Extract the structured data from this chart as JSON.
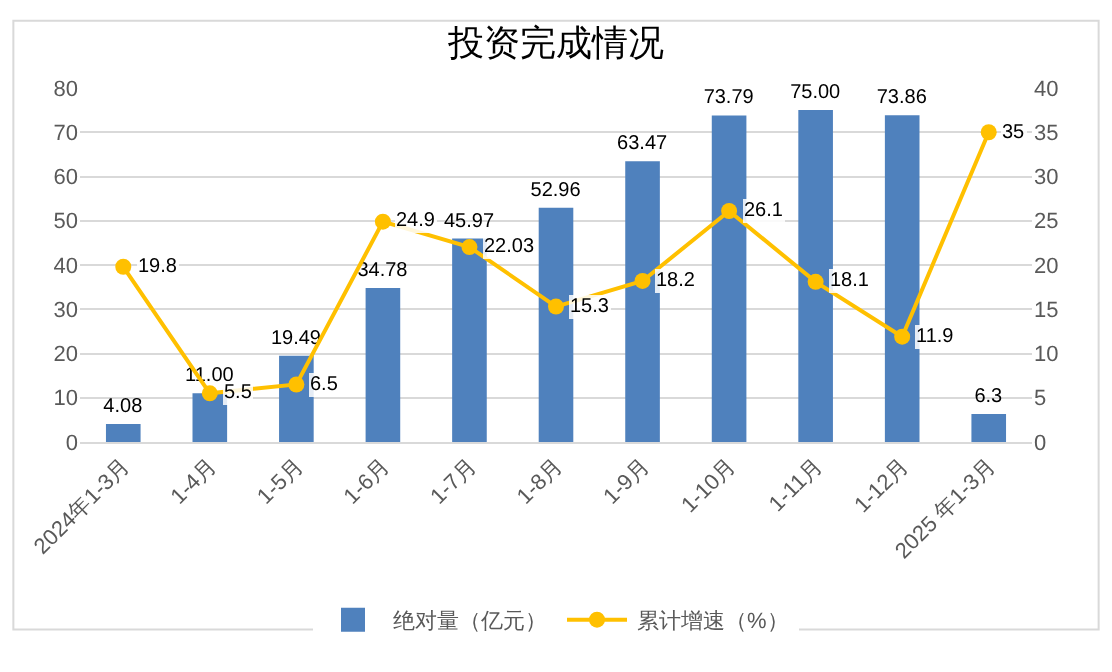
{
  "chart_data": {
    "type": "bar",
    "title": "投资完成情况",
    "categories": [
      "2024年1-3月",
      "1-4月",
      "1-5月",
      "1-6月",
      "1-7月",
      "1-8月",
      "1-9月",
      "1-10月",
      "1-11月",
      "1-12月",
      "2025 年1-3月"
    ],
    "series": [
      {
        "name": "绝对量（亿元）",
        "color": "#4f81bd",
        "values": [
          4.08,
          11.0,
          19.49,
          34.78,
          45.97,
          52.96,
          63.47,
          73.79,
          75.0,
          73.86,
          6.3
        ],
        "value_labels": [
          "4.08",
          "11.00",
          "19.49",
          "34.78",
          "45.97",
          "52.96",
          "63.47",
          "73.79",
          "75.00",
          "73.86",
          "6.3"
        ]
      },
      {
        "name": "累计增速（%）",
        "type": "line",
        "axis": "y2",
        "color": "#ffc000",
        "marker": "circle",
        "line_style": "solid",
        "values": [
          19.8,
          5.5,
          6.5,
          24.9,
          22.03,
          15.3,
          18.2,
          26.1,
          18.1,
          11.9,
          35
        ],
        "value_labels": [
          "19.8",
          "5.5",
          "6.5",
          "24.9",
          "22.03",
          "15.3",
          "18.2",
          "26.1",
          "18.1",
          "11.9",
          "35"
        ]
      }
    ],
    "ylim": [
      0,
      80
    ],
    "yticks": [
      0,
      10,
      20,
      30,
      40,
      50,
      60,
      70,
      80
    ],
    "y2lim": [
      0,
      40
    ],
    "y2ticks": [
      0,
      5,
      10,
      15,
      20,
      25,
      30,
      35,
      40
    ],
    "grid": "y",
    "legend": "bottom"
  }
}
